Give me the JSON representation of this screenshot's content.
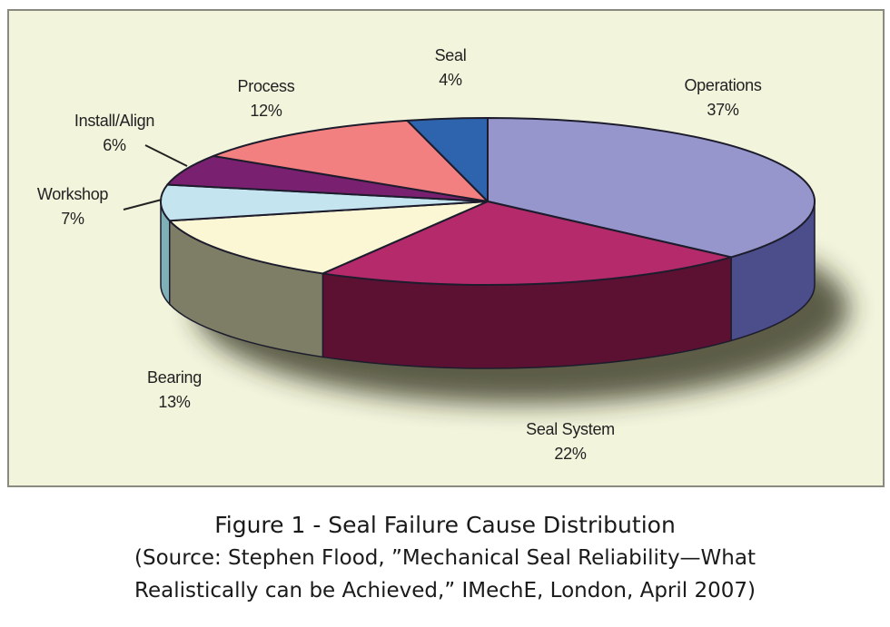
{
  "chart_data": {
    "type": "pie",
    "title": "Figure 1 - Seal Failure Cause Distribution",
    "subtitle": "(Source: Stephen Flood, ”Mechanical Seal Reliability—What Realistically can be Achieved,” IMechE, London, April 2007)",
    "style": "3d-pie",
    "categories": [
      "Operations",
      "Seal System",
      "Bearing",
      "Workshop",
      "Install/Align",
      "Process",
      "Seal"
    ],
    "values": [
      37,
      22,
      13,
      7,
      6,
      12,
      4
    ],
    "unit": "%",
    "colors": {
      "Operations": "#9696cc",
      "Seal System": "#b52a6a",
      "Bearing": "#fbf7d4",
      "Workshop": "#c4e4f0",
      "Install/Align": "#7a2070",
      "Process": "#f28080",
      "Seal": "#2e64ae"
    },
    "side_colors": {
      "Operations": "#4c4e8c",
      "Seal System": "#5c1032",
      "Bearing": "#7e7e66",
      "Workshop": "#7fb0b8"
    },
    "legend": "none (callout labels)"
  },
  "labels": {
    "operations": {
      "name": "Operations",
      "pct": "37%"
    },
    "seal_system": {
      "name": "Seal System",
      "pct": "22%"
    },
    "bearing": {
      "name": "Bearing",
      "pct": "13%"
    },
    "workshop": {
      "name": "Workshop",
      "pct": "7%"
    },
    "install_align": {
      "name": "Install/Align",
      "pct": "6%"
    },
    "process": {
      "name": "Process",
      "pct": "12%"
    },
    "seal": {
      "name": "Seal",
      "pct": "4%"
    }
  },
  "caption": {
    "title": "Figure 1 - Seal Failure Cause Distribution",
    "source_line1": "(Source: Stephen Flood, ”Mechanical Seal Reliability—What",
    "source_line2": "Realistically can be Achieved,” IMechE, London, April 2007)"
  }
}
